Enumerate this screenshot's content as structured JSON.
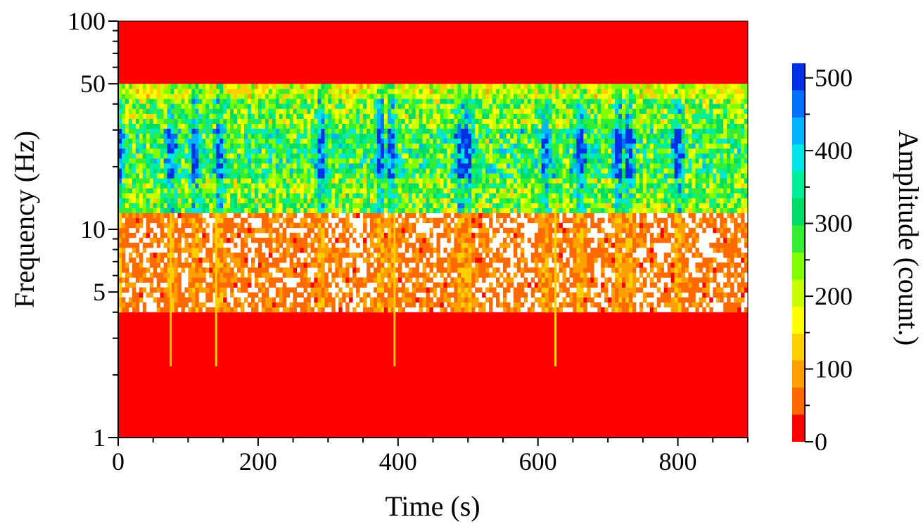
{
  "chart_data": {
    "type": "heatmap",
    "xlabel": "Time (s)",
    "ylabel": "Frequency (Hz)",
    "colorbar_label": "Amplitude (count.)",
    "xlim": [
      0,
      900
    ],
    "ylim": [
      1,
      100
    ],
    "y_scale": "log",
    "x_ticks": [
      0,
      200,
      400,
      600,
      800
    ],
    "x_tick_labels": [
      "0",
      "200",
      "400",
      "600",
      "800"
    ],
    "y_ticks": [
      1,
      5,
      10,
      50,
      100
    ],
    "y_tick_labels": [
      "1",
      "5",
      "10",
      "50",
      "100"
    ],
    "colorbar_range": [
      0,
      520
    ],
    "colorbar_ticks": [
      0,
      100,
      200,
      300,
      400,
      500
    ],
    "colorbar_tick_labels": [
      "0",
      "100",
      "200",
      "300",
      "400",
      "500"
    ],
    "colormap": [
      "#ff0000",
      "#ff6a00",
      "#ff9f00",
      "#ffcf00",
      "#ffff00",
      "#c8ff00",
      "#80ff00",
      "#33ee33",
      "#00dd66",
      "#00ee99",
      "#00e6e6",
      "#00b4ff",
      "#0070ff",
      "#0030e6"
    ],
    "features": {
      "upper_band_hz": [
        50,
        100
      ],
      "upper_band_amplitude": 0,
      "active_band_hz": [
        12,
        50
      ],
      "active_band_typical_amplitude": 250,
      "strongest_band_hz": [
        18,
        30
      ],
      "strongest_amplitude": 500,
      "transition_band_hz": [
        4,
        12
      ],
      "transition_amplitude": 60,
      "quiet_band_hz": [
        1,
        4
      ],
      "quiet_amplitude": 0,
      "strong_events_time_s": [
        0,
        75,
        110,
        145,
        290,
        375,
        390,
        490,
        500,
        610,
        660,
        715,
        730,
        800
      ],
      "deep_events_time_s": [
        75,
        140,
        395,
        625
      ]
    }
  }
}
